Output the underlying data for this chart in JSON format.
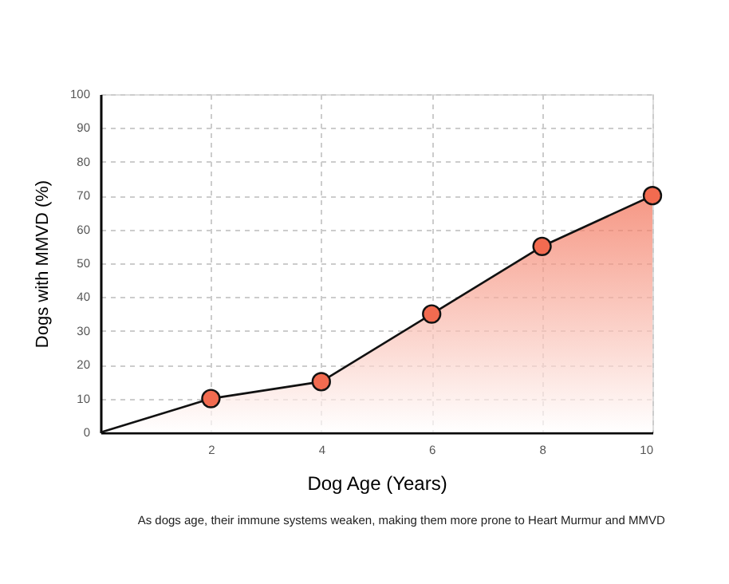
{
  "chart_data": {
    "type": "area",
    "xlabel": "Dog Age (Years)",
    "ylabel": "Dogs with MMVD (%)",
    "series": [
      {
        "color": "#f26b50",
        "x": [
          0,
          2,
          4,
          6,
          8,
          10
        ],
        "values": [
          0,
          10,
          15,
          35,
          55,
          70
        ]
      },
      {
        "type": "scatter",
        "color": "#f26b50",
        "marker": "circle",
        "x": [
          2,
          4,
          6,
          8,
          10
        ],
        "values": [
          10,
          15,
          35,
          55,
          70
        ]
      }
    ],
    "xlim": [
      0,
      10
    ],
    "xticks": [
      2,
      4,
      6,
      8,
      10
    ],
    "ylim": [
      0,
      100
    ],
    "yticks": [
      0,
      10,
      20,
      30,
      40,
      50,
      60,
      70,
      80,
      90,
      100
    ],
    "grid": true,
    "annotations": [
      "As dogs age, their immune systems weaken, making them more prone to Heart Murmur and MMVD"
    ]
  }
}
